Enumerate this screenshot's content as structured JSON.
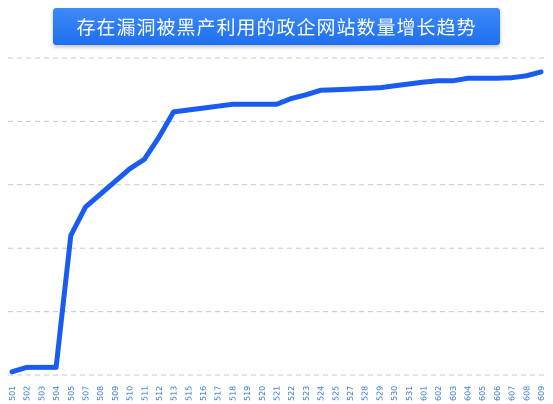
{
  "chart_data": {
    "type": "line",
    "title": "存在漏洞被黑产利用的政企网站数量增长趋势",
    "xlabel": "",
    "ylabel": "",
    "grid": true,
    "x": [
      "501",
      "502",
      "503",
      "504",
      "505",
      "507",
      "508",
      "509",
      "510",
      "511",
      "512",
      "513",
      "515",
      "516",
      "517",
      "518",
      "519",
      "520",
      "521",
      "522",
      "523",
      "524",
      "525",
      "527",
      "528",
      "529",
      "530",
      "531",
      "601",
      "602",
      "603",
      "604",
      "605",
      "606",
      "607",
      "608",
      "609"
    ],
    "series": [
      {
        "color": "#1a5cf0",
        "values": [
          0.5,
          1.2,
          1.2,
          1.2,
          22.0,
          26.5,
          28.5,
          30.5,
          32.5,
          34.0,
          37.5,
          41.5,
          41.8,
          42.1,
          42.4,
          42.7,
          42.7,
          42.7,
          42.7,
          43.6,
          44.2,
          44.9,
          45.0,
          45.1,
          45.2,
          45.3,
          45.6,
          45.9,
          46.2,
          46.4,
          46.4,
          46.8,
          46.8,
          46.8,
          46.9,
          47.2,
          47.8
        ]
      }
    ],
    "ylim": [
      0,
      50
    ],
    "gridlines": [
      0,
      10,
      20,
      30,
      40,
      50
    ]
  }
}
